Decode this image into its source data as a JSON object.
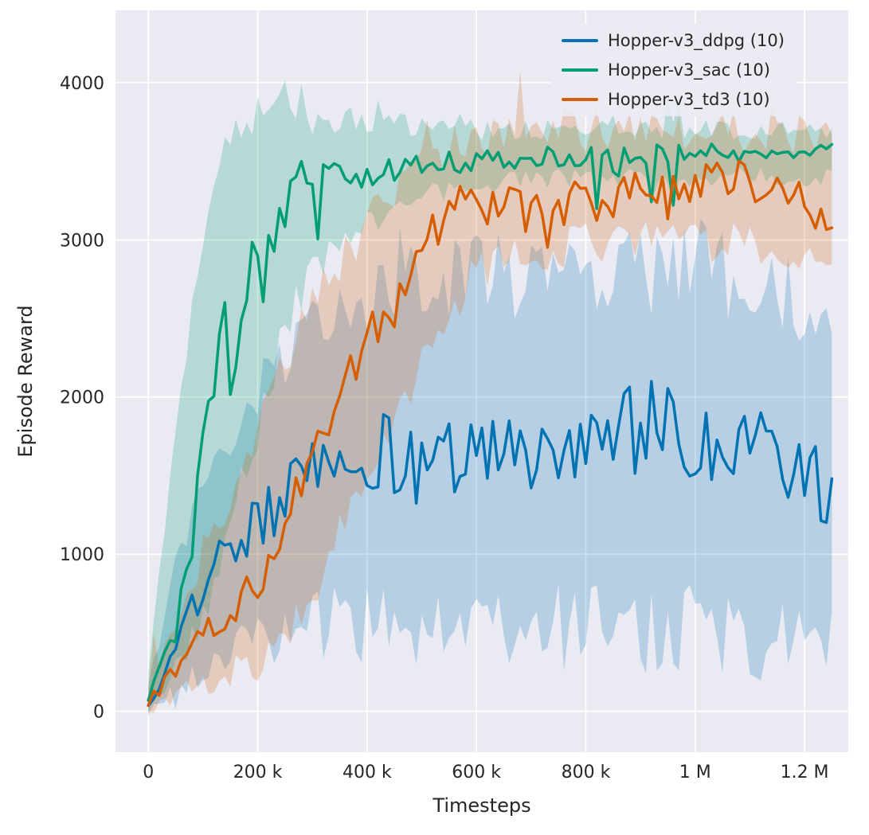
{
  "chart_data": {
    "type": "line",
    "title": "",
    "xlabel": "Timesteps",
    "ylabel": "Episode Reward",
    "xlim": [
      -60000,
      1280000
    ],
    "ylim": [
      -260,
      4460
    ],
    "x_start": 0,
    "x_end": 1250000,
    "x_step": 10000,
    "grid": true,
    "legend_position": "upper right",
    "band_alpha": 0.22,
    "plot_bg": "#eaeaf2",
    "grid_color": "#ffffff",
    "text_color": "#262626",
    "xtick_values": [
      0,
      200000,
      400000,
      600000,
      800000,
      1000000,
      1200000
    ],
    "xtick_labels": [
      "0",
      "200 k",
      "400 k",
      "600 k",
      "800 k",
      "1 M",
      "1.2 M"
    ],
    "ytick_values": [
      0,
      1000,
      2000,
      3000,
      4000
    ],
    "ytick_labels": [
      "0",
      "1000",
      "2000",
      "3000",
      "4000"
    ],
    "series": [
      {
        "name": "ddpg",
        "label": "Hopper-v3_ddpg (10)",
        "color": "#0173b2",
        "seed": 11,
        "dip_prob": 0.05,
        "dip_size": 400,
        "trend": [
          [
            0,
            50
          ],
          [
            30000,
            250
          ],
          [
            60000,
            500
          ],
          [
            100000,
            800
          ],
          [
            150000,
            1050
          ],
          [
            200000,
            1200
          ],
          [
            250000,
            1350
          ],
          [
            300000,
            1500
          ],
          [
            350000,
            1550
          ],
          [
            400000,
            1650
          ],
          [
            500000,
            1600
          ],
          [
            600000,
            1700
          ],
          [
            700000,
            1650
          ],
          [
            800000,
            1750
          ],
          [
            900000,
            1800
          ],
          [
            950000,
            1900
          ],
          [
            1000000,
            1750
          ],
          [
            1050000,
            1700
          ],
          [
            1100000,
            1700
          ],
          [
            1150000,
            1550
          ],
          [
            1200000,
            1600
          ],
          [
            1250000,
            1400
          ]
        ],
        "noise_amp": [
          [
            0,
            30
          ],
          [
            50000,
            100
          ],
          [
            150000,
            150
          ],
          [
            300000,
            220
          ],
          [
            400000,
            280
          ],
          [
            1250000,
            300
          ]
        ],
        "band": [
          [
            0,
            0,
            150
          ],
          [
            50000,
            100,
            900
          ],
          [
            100000,
            300,
            1500
          ],
          [
            200000,
            450,
            2050
          ],
          [
            300000,
            550,
            2400
          ],
          [
            400000,
            550,
            2700
          ],
          [
            500000,
            500,
            2800
          ],
          [
            600000,
            550,
            2800
          ],
          [
            700000,
            500,
            2700
          ],
          [
            800000,
            550,
            2850
          ],
          [
            900000,
            500,
            2800
          ],
          [
            1000000,
            550,
            2900
          ],
          [
            1100000,
            500,
            2700
          ],
          [
            1200000,
            420,
            2600
          ],
          [
            1250000,
            500,
            2400
          ]
        ]
      },
      {
        "name": "sac",
        "label": "Hopper-v3_sac (10)",
        "color": "#029e73",
        "seed": 22,
        "dip_prob": 0.09,
        "dip_size": 350,
        "trend": [
          [
            0,
            60
          ],
          [
            20000,
            300
          ],
          [
            40000,
            500
          ],
          [
            60000,
            850
          ],
          [
            80000,
            1100
          ],
          [
            100000,
            1650
          ],
          [
            120000,
            2100
          ],
          [
            140000,
            2450
          ],
          [
            160000,
            2300
          ],
          [
            180000,
            2750
          ],
          [
            200000,
            2950
          ],
          [
            220000,
            2900
          ],
          [
            240000,
            3100
          ],
          [
            260000,
            3300
          ],
          [
            280000,
            3400
          ],
          [
            300000,
            3300
          ],
          [
            330000,
            3420
          ],
          [
            360000,
            3380
          ],
          [
            400000,
            3420
          ],
          [
            450000,
            3450
          ],
          [
            500000,
            3480
          ],
          [
            600000,
            3500
          ],
          [
            700000,
            3520
          ],
          [
            800000,
            3530
          ],
          [
            900000,
            3540
          ],
          [
            1000000,
            3550
          ],
          [
            1100000,
            3550
          ],
          [
            1200000,
            3560
          ],
          [
            1250000,
            3550
          ]
        ],
        "noise_amp": [
          [
            0,
            40
          ],
          [
            100000,
            160
          ],
          [
            250000,
            130
          ],
          [
            350000,
            90
          ],
          [
            500000,
            70
          ],
          [
            1250000,
            60
          ]
        ],
        "band": [
          [
            0,
            0,
            250
          ],
          [
            50000,
            250,
            1800
          ],
          [
            100000,
            650,
            3100
          ],
          [
            150000,
            1150,
            3700
          ],
          [
            200000,
            1800,
            3800
          ],
          [
            250000,
            2450,
            3800
          ],
          [
            300000,
            2800,
            3750
          ],
          [
            350000,
            3000,
            3780
          ],
          [
            400000,
            3100,
            3760
          ],
          [
            500000,
            3280,
            3720
          ],
          [
            600000,
            3350,
            3700
          ],
          [
            800000,
            3400,
            3710
          ],
          [
            1000000,
            3400,
            3700
          ],
          [
            1250000,
            3400,
            3700
          ]
        ]
      },
      {
        "name": "td3",
        "label": "Hopper-v3_td3 (10)",
        "color": "#d55e00",
        "seed": 33,
        "dip_prob": 0.05,
        "dip_size": 250,
        "trend": [
          [
            0,
            50
          ],
          [
            50000,
            280
          ],
          [
            100000,
            500
          ],
          [
            150000,
            650
          ],
          [
            200000,
            800
          ],
          [
            250000,
            1250
          ],
          [
            300000,
            1600
          ],
          [
            350000,
            2050
          ],
          [
            400000,
            2350
          ],
          [
            450000,
            2650
          ],
          [
            500000,
            2900
          ],
          [
            550000,
            3250
          ],
          [
            600000,
            3200
          ],
          [
            650000,
            3250
          ],
          [
            700000,
            3150
          ],
          [
            750000,
            3200
          ],
          [
            800000,
            3300
          ],
          [
            850000,
            3200
          ],
          [
            900000,
            3350
          ],
          [
            950000,
            3300
          ],
          [
            1000000,
            3300
          ],
          [
            1050000,
            3400
          ],
          [
            1100000,
            3350
          ],
          [
            1150000,
            3300
          ],
          [
            1200000,
            3250
          ],
          [
            1250000,
            3100
          ]
        ],
        "noise_amp": [
          [
            0,
            30
          ],
          [
            100000,
            90
          ],
          [
            200000,
            130
          ],
          [
            400000,
            160
          ],
          [
            600000,
            140
          ],
          [
            1250000,
            140
          ]
        ],
        "band": [
          [
            0,
            0,
            150
          ],
          [
            100000,
            180,
            950
          ],
          [
            200000,
            300,
            1800
          ],
          [
            300000,
            700,
            2600
          ],
          [
            400000,
            1500,
            3100
          ],
          [
            500000,
            2200,
            3500
          ],
          [
            600000,
            2800,
            3650
          ],
          [
            700000,
            2900,
            3700
          ],
          [
            800000,
            3000,
            3700
          ],
          [
            1000000,
            3000,
            3700
          ],
          [
            1250000,
            2900,
            3650
          ]
        ]
      }
    ]
  }
}
